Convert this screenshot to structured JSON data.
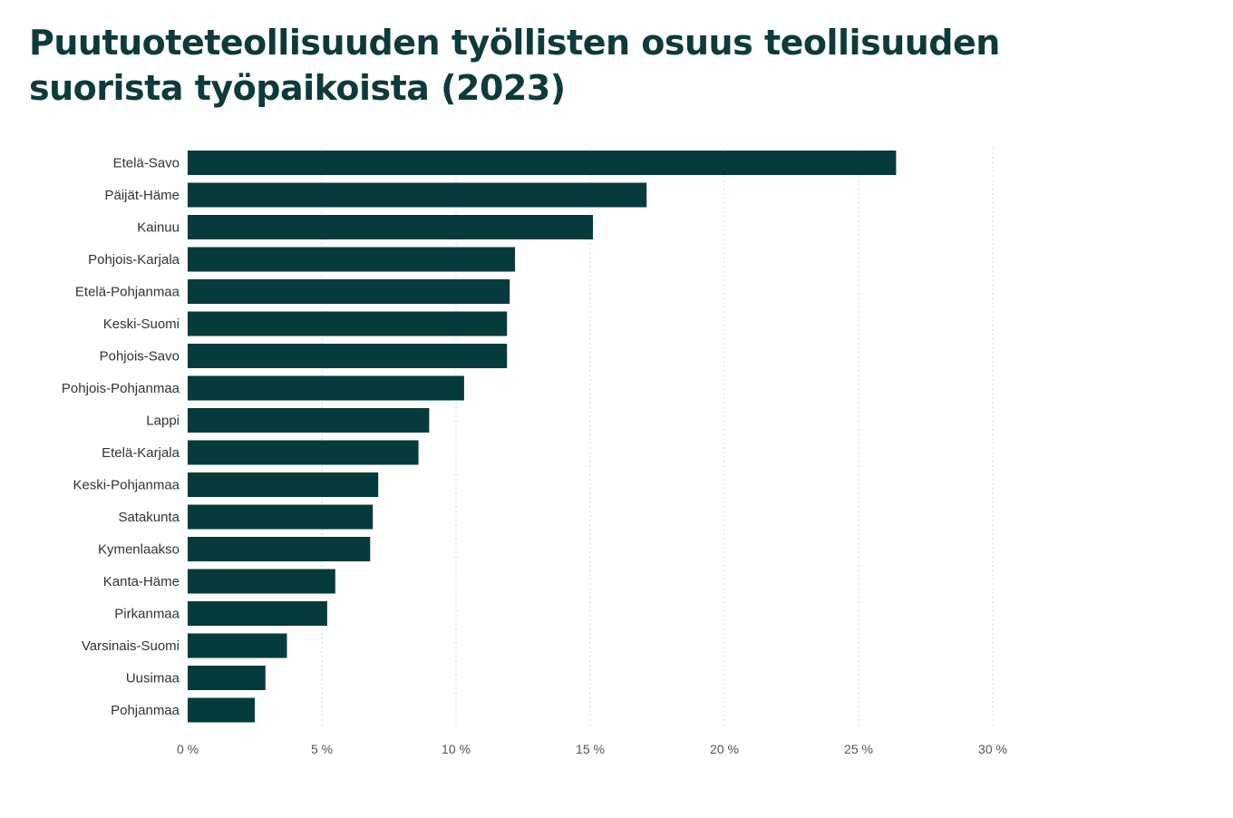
{
  "chart_data": {
    "type": "bar",
    "orientation": "horizontal",
    "title": "Puutuoteteollisuuden työllisten osuus teollisuuden suorista työpaikoista (2023)",
    "xlabel": "",
    "ylabel": "",
    "categories": [
      "Etelä-Savo",
      "Päijät-Häme",
      "Kainuu",
      "Pohjois-Karjala",
      "Etelä-Pohjanmaa",
      "Keski-Suomi",
      "Pohjois-Savo",
      "Pohjois-Pohjanmaa",
      "Lappi",
      "Etelä-Karjala",
      "Keski-Pohjanmaa",
      "Satakunta",
      "Kymenlaakso",
      "Kanta-Häme",
      "Pirkanmaa",
      "Varsinais-Suomi",
      "Uusimaa",
      "Pohjanmaa"
    ],
    "values": [
      26.4,
      17.1,
      15.1,
      12.2,
      12.0,
      11.9,
      11.9,
      10.3,
      9.0,
      8.6,
      7.1,
      6.9,
      6.8,
      5.5,
      5.2,
      3.7,
      2.9,
      2.5
    ],
    "unit": "%",
    "xlim": [
      0,
      30
    ],
    "xticks": [
      0,
      5,
      10,
      15,
      20,
      25,
      30
    ],
    "xtick_labels": [
      "0 %",
      "5 %",
      "10 %",
      "15 %",
      "20 %",
      "25 %",
      "30 %"
    ],
    "grid": "vertical dashed",
    "legend": "none",
    "colors": {
      "bar": "#063a3c",
      "title": "#0d3b3c",
      "grid": "#d9d9d9"
    }
  }
}
